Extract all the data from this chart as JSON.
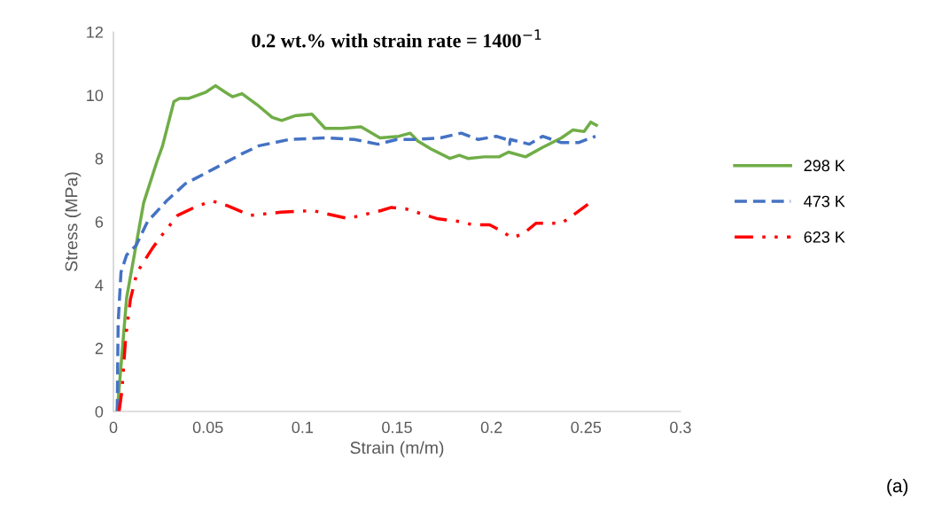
{
  "chart_data": {
    "type": "line",
    "title": "0.2 wt.% with strain rate = 1400$^{−1}$",
    "xlabel": "Strain (m/m)",
    "ylabel": "Stress (MPa)",
    "xlim": [
      0,
      0.3
    ],
    "ylim": [
      0,
      12
    ],
    "xticks": [
      0,
      0.05,
      0.1,
      0.15,
      0.2,
      0.25,
      0.3
    ],
    "yticks": [
      0,
      2,
      4,
      6,
      8,
      10,
      12
    ],
    "grid": false,
    "legend": "right",
    "annotations": [
      "(a)"
    ],
    "series": [
      {
        "name": "298 K",
        "color": "#70ad47",
        "line_style": "solid",
        "x": [
          0.002,
          0.007,
          0.016,
          0.023,
          0.026,
          0.032,
          0.035,
          0.04,
          0.049,
          0.054,
          0.059,
          0.063,
          0.068,
          0.076,
          0.084,
          0.089,
          0.096,
          0.105,
          0.112,
          0.121,
          0.131,
          0.141,
          0.151,
          0.157,
          0.161,
          0.168,
          0.178,
          0.183,
          0.1875,
          0.196,
          0.204,
          0.209,
          0.218,
          0.227,
          0.237,
          0.243,
          0.249,
          0.2525,
          0.2555
        ],
        "values": [
          0,
          3.6,
          6.6,
          7.9,
          8.4,
          9.8,
          9.9,
          9.9,
          10.1,
          10.3,
          10.1,
          9.95,
          10.05,
          9.7,
          9.3,
          9.2,
          9.35,
          9.4,
          8.95,
          8.95,
          9.0,
          8.65,
          8.7,
          8.8,
          8.55,
          8.3,
          8.0,
          8.1,
          8.0,
          8.05,
          8.05,
          8.2,
          8.05,
          8.35,
          8.65,
          8.9,
          8.85,
          9.15,
          9.05
        ]
      },
      {
        "name": "473 K",
        "color": "#4472c4",
        "line_style": "dashed",
        "x": [
          0.002,
          0.0025,
          0.004,
          0.007,
          0.012,
          0.018,
          0.028,
          0.038,
          0.054,
          0.068,
          0.077,
          0.093,
          0.112,
          0.1275,
          0.14,
          0.15,
          0.159,
          0.173,
          0.184,
          0.193,
          0.2025,
          0.208,
          0.2095,
          0.21,
          0.22,
          0.227,
          0.237,
          0.246,
          0.255
        ],
        "values": [
          0,
          2.8,
          4.4,
          4.95,
          5.25,
          6.0,
          6.65,
          7.2,
          7.7,
          8.15,
          8.4,
          8.6,
          8.65,
          8.6,
          8.45,
          8.6,
          8.6,
          8.65,
          8.8,
          8.6,
          8.7,
          8.6,
          8.45,
          8.6,
          8.45,
          8.7,
          8.5,
          8.5,
          8.7
        ]
      },
      {
        "name": "623 K",
        "color": "#ff0000",
        "line_style": "dashdotdot",
        "x": [
          0.003,
          0.0045,
          0.0065,
          0.009,
          0.0125,
          0.0205,
          0.026,
          0.034,
          0.0445,
          0.0525,
          0.0605,
          0.0725,
          0.0885,
          0.1055,
          0.124,
          0.131,
          0.1415,
          0.147,
          0.155,
          0.171,
          0.184,
          0.19,
          0.199,
          0.2055,
          0.2105,
          0.2165,
          0.2235,
          0.237,
          0.243,
          0.251
        ],
        "values": [
          0,
          0.65,
          2.35,
          3.55,
          4.4,
          5.15,
          5.6,
          6.2,
          6.5,
          6.65,
          6.5,
          6.2,
          6.3,
          6.35,
          6.1,
          6.2,
          6.35,
          6.45,
          6.4,
          6.1,
          6.0,
          5.9,
          5.9,
          5.7,
          5.5,
          5.6,
          5.95,
          5.95,
          6.2,
          6.55
        ]
      }
    ]
  }
}
